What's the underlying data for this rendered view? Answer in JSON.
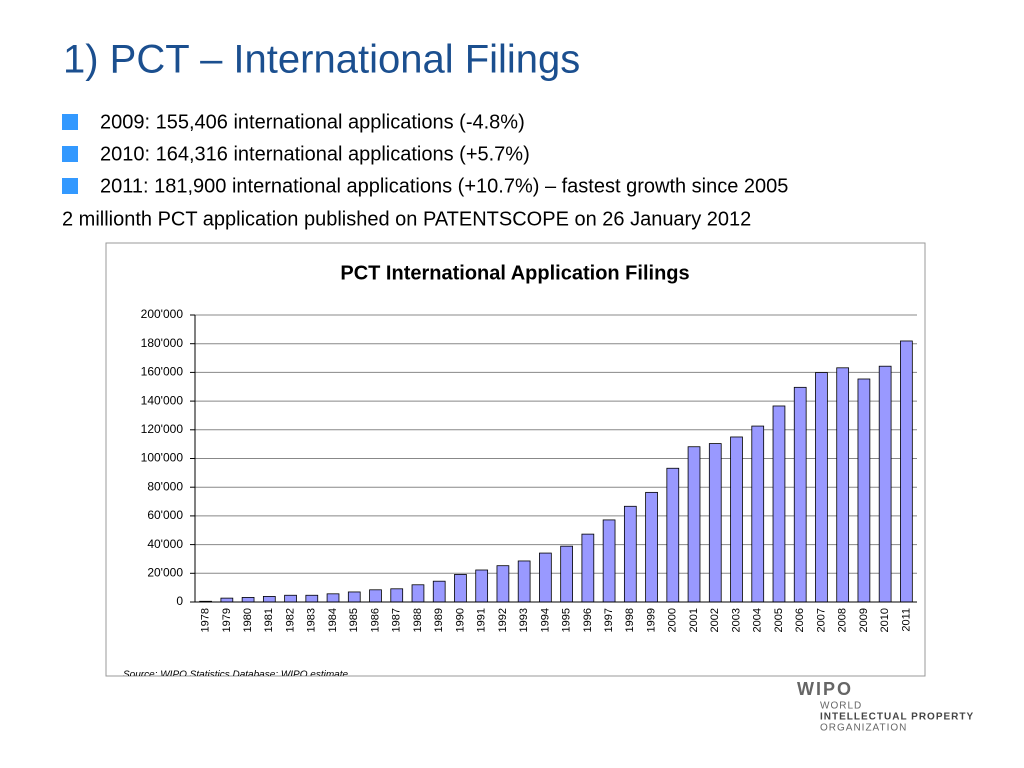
{
  "slide": {
    "title": "1) PCT – International Filings",
    "bullets": [
      "2009: 155,406 international applications (-4.8%)",
      "2010: 164,316 international applications (+5.7%)",
      "2011: 181,900 international applications (+10.7%) – fastest growth since 2005"
    ],
    "note": "2 millionth PCT application published on PATENTSCOPE on 26 January 2012",
    "logo": {
      "name": "WIPO",
      "lines": [
        "WORLD",
        "INTELLECTUAL PROPERTY",
        "ORGANIZATION"
      ]
    }
  },
  "chart_data": {
    "type": "bar",
    "title": "PCT International Application Filings",
    "source": "Source: WIPO Statistics Database; WIPO estimate",
    "categories": [
      "1978",
      "1979",
      "1980",
      "1981",
      "1982",
      "1983",
      "1984",
      "1985",
      "1986",
      "1987",
      "1988",
      "1989",
      "1990",
      "1991",
      "1992",
      "1993",
      "1994",
      "1995",
      "1996",
      "1997",
      "1998",
      "1999",
      "2000",
      "2001",
      "2002",
      "2003",
      "2004",
      "2005",
      "2006",
      "2007",
      "2008",
      "2009",
      "2010",
      "2011"
    ],
    "values": [
      500,
      2700,
      3200,
      3900,
      4700,
      4700,
      5700,
      7000,
      8500,
      9200,
      12000,
      14500,
      19200,
      22300,
      25300,
      28600,
      34100,
      38900,
      47300,
      57200,
      66700,
      76400,
      93200,
      108200,
      110400,
      115000,
      122600,
      136600,
      149600,
      159900,
      163200,
      155406,
      164316,
      181900
    ],
    "color": "#9999ff",
    "ylim": [
      0,
      200000
    ],
    "yticks": [
      0,
      {
        "value": 20000,
        "label": "20'000"
      },
      {
        "value": 40000,
        "label": "40'000"
      },
      {
        "value": 60000,
        "label": "60'000"
      },
      {
        "value": 80000,
        "label": "80'000"
      },
      {
        "value": 100000,
        "label": "100'000"
      },
      {
        "value": 120000,
        "label": "120'000"
      },
      {
        "value": 140000,
        "label": "140'000"
      },
      {
        "value": 160000,
        "label": "160'000"
      },
      {
        "value": 180000,
        "label": "180'000"
      },
      {
        "value": 200000,
        "label": "200'000"
      }
    ],
    "grid": true
  }
}
